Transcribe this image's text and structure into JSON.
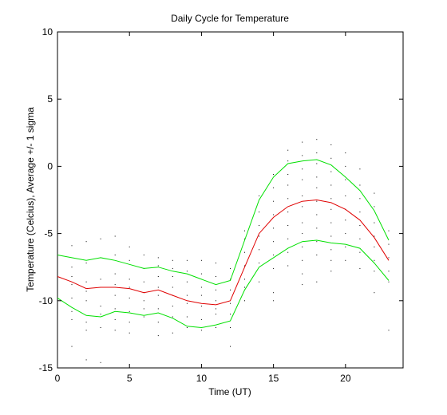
{
  "chart_data": {
    "type": "line",
    "title": "Daily Cycle for Temperature",
    "xlabel": "Time (UT)",
    "ylabel": "Temperature (Celcius), Average +/- 1 sigma",
    "xlim": [
      0,
      24
    ],
    "ylim": [
      -15,
      10
    ],
    "xticks": [
      0,
      5,
      10,
      15,
      20
    ],
    "yticks": [
      -15,
      -10,
      -5,
      0,
      5,
      10
    ],
    "grid": false,
    "x": [
      0,
      1,
      2,
      3,
      4,
      5,
      6,
      7,
      8,
      9,
      10,
      11,
      12,
      13,
      14,
      15,
      16,
      17,
      18,
      19,
      20,
      21,
      22,
      23
    ],
    "series": [
      {
        "color": "#00e000",
        "values": [
          -6.6,
          -6.8,
          -7.0,
          -6.8,
          -7.0,
          -7.3,
          -7.6,
          -7.5,
          -7.8,
          -8.0,
          -8.4,
          -8.8,
          -8.5,
          -5.5,
          -2.5,
          -0.8,
          0.2,
          0.4,
          0.5,
          0.1,
          -0.8,
          -1.8,
          -3.3,
          -5.5
        ]
      },
      {
        "color": "#e00000",
        "values": [
          -8.2,
          -8.6,
          -9.1,
          -9.0,
          -9.0,
          -9.1,
          -9.4,
          -9.2,
          -9.6,
          -10.0,
          -10.2,
          -10.3,
          -10.0,
          -7.5,
          -5.0,
          -3.8,
          -3.0,
          -2.6,
          -2.5,
          -2.7,
          -3.2,
          -4.0,
          -5.3,
          -7.0
        ]
      },
      {
        "color": "#00e000",
        "values": [
          -9.8,
          -10.5,
          -11.1,
          -11.2,
          -10.8,
          -10.9,
          -11.1,
          -10.9,
          -11.3,
          -11.9,
          -12.0,
          -11.8,
          -11.5,
          -9.2,
          -7.5,
          -6.8,
          -6.1,
          -5.6,
          -5.5,
          -5.7,
          -5.8,
          -6.1,
          -7.2,
          -8.5
        ]
      }
    ],
    "scatter": {
      "color": "#000000",
      "points": [
        [
          0,
          -6.0
        ],
        [
          0,
          -7.2
        ],
        [
          0,
          -7.8
        ],
        [
          0,
          -8.4
        ],
        [
          0,
          -9.0
        ],
        [
          0,
          -9.6
        ],
        [
          0,
          -10.6
        ],
        [
          1,
          -5.9
        ],
        [
          1,
          -7.5
        ],
        [
          1,
          -8.2
        ],
        [
          1,
          -8.8
        ],
        [
          1,
          -9.8
        ],
        [
          1,
          -10.8
        ],
        [
          1,
          -11.4
        ],
        [
          1,
          -13.4
        ],
        [
          2,
          -5.6
        ],
        [
          2,
          -7.2
        ],
        [
          2,
          -8.6
        ],
        [
          2,
          -9.3
        ],
        [
          2,
          -10.0
        ],
        [
          2,
          -11.6
        ],
        [
          2,
          -12.2
        ],
        [
          2,
          -14.4
        ],
        [
          3,
          -5.4
        ],
        [
          3,
          -6.8
        ],
        [
          3,
          -8.4
        ],
        [
          3,
          -9.0
        ],
        [
          3,
          -10.4
        ],
        [
          3,
          -11.0
        ],
        [
          3,
          -12.0
        ],
        [
          3,
          -14.6
        ],
        [
          4,
          -5.2
        ],
        [
          4,
          -6.6
        ],
        [
          4,
          -8.0
        ],
        [
          4,
          -8.8
        ],
        [
          4,
          -9.6
        ],
        [
          4,
          -10.6
        ],
        [
          4,
          -11.4
        ],
        [
          4,
          -12.2
        ],
        [
          5,
          -6.0
        ],
        [
          5,
          -7.0
        ],
        [
          5,
          -8.4
        ],
        [
          5,
          -9.0
        ],
        [
          5,
          -9.8
        ],
        [
          5,
          -10.8
        ],
        [
          5,
          -11.6
        ],
        [
          5,
          -12.4
        ],
        [
          6,
          -6.6
        ],
        [
          6,
          -7.6
        ],
        [
          6,
          -8.6
        ],
        [
          6,
          -9.4
        ],
        [
          6,
          -10.0
        ],
        [
          6,
          -10.6
        ],
        [
          6,
          -11.2
        ],
        [
          7,
          -6.8
        ],
        [
          7,
          -7.4
        ],
        [
          7,
          -8.2
        ],
        [
          7,
          -9.0
        ],
        [
          7,
          -9.6
        ],
        [
          7,
          -10.6
        ],
        [
          7,
          -11.6
        ],
        [
          7,
          -12.6
        ],
        [
          8,
          -7.0
        ],
        [
          8,
          -7.6
        ],
        [
          8,
          -8.2
        ],
        [
          8,
          -9.0
        ],
        [
          8,
          -9.6
        ],
        [
          8,
          -10.4
        ],
        [
          8,
          -11.2
        ],
        [
          8,
          -12.4
        ],
        [
          9,
          -7.0
        ],
        [
          9,
          -7.8
        ],
        [
          9,
          -8.6
        ],
        [
          9,
          -9.6
        ],
        [
          9,
          -10.2
        ],
        [
          9,
          -11.2
        ],
        [
          9,
          -12.0
        ],
        [
          10,
          -7.0
        ],
        [
          10,
          -8.0
        ],
        [
          10,
          -9.0
        ],
        [
          10,
          -9.6
        ],
        [
          10,
          -10.4
        ],
        [
          10,
          -11.4
        ],
        [
          10,
          -12.2
        ],
        [
          11,
          -7.2
        ],
        [
          11,
          -8.2
        ],
        [
          11,
          -9.2
        ],
        [
          11,
          -10.0
        ],
        [
          11,
          -10.6
        ],
        [
          11,
          -11.0
        ],
        [
          11,
          -12.0
        ],
        [
          12,
          -7.6
        ],
        [
          12,
          -8.4
        ],
        [
          12,
          -9.2
        ],
        [
          12,
          -10.2
        ],
        [
          12,
          -11.0
        ],
        [
          12,
          -12.0
        ],
        [
          12,
          -13.4
        ],
        [
          13,
          -4.8
        ],
        [
          13,
          -5.4
        ],
        [
          13,
          -6.4
        ],
        [
          13,
          -7.4
        ],
        [
          13,
          -8.4
        ],
        [
          13,
          -9.0
        ],
        [
          13,
          -10.0
        ],
        [
          14,
          -2.2
        ],
        [
          14,
          -3.4
        ],
        [
          14,
          -4.4
        ],
        [
          14,
          -5.2
        ],
        [
          14,
          -6.2
        ],
        [
          14,
          -7.2
        ],
        [
          14,
          -8.6
        ],
        [
          15,
          -0.6
        ],
        [
          15,
          -1.6
        ],
        [
          15,
          -2.6
        ],
        [
          15,
          -3.6
        ],
        [
          15,
          -4.6
        ],
        [
          15,
          -5.6
        ],
        [
          15,
          -6.6
        ],
        [
          15,
          -7.6
        ],
        [
          15,
          -9.4
        ],
        [
          15,
          -10.0
        ],
        [
          16,
          1.2
        ],
        [
          16,
          0.4
        ],
        [
          16,
          -0.6
        ],
        [
          16,
          -1.4
        ],
        [
          16,
          -2.4
        ],
        [
          16,
          -3.4
        ],
        [
          16,
          -4.4
        ],
        [
          16,
          -5.4
        ],
        [
          16,
          -6.4
        ],
        [
          16,
          -7.4
        ],
        [
          17,
          1.8
        ],
        [
          17,
          0.8
        ],
        [
          17,
          -0.2
        ],
        [
          17,
          -1.0
        ],
        [
          17,
          -2.2
        ],
        [
          17,
          -3.0
        ],
        [
          17,
          -4.2
        ],
        [
          17,
          -5.0
        ],
        [
          17,
          -6.0
        ],
        [
          17,
          -7.0
        ],
        [
          17,
          -8.0
        ],
        [
          17,
          -8.8
        ],
        [
          18,
          2.0
        ],
        [
          18,
          1.0
        ],
        [
          18,
          0.2
        ],
        [
          18,
          -0.8
        ],
        [
          18,
          -1.6
        ],
        [
          18,
          -2.6
        ],
        [
          18,
          -3.6
        ],
        [
          18,
          -4.6
        ],
        [
          18,
          -5.6
        ],
        [
          18,
          -6.6
        ],
        [
          18,
          -8.6
        ],
        [
          19,
          1.6
        ],
        [
          19,
          0.6
        ],
        [
          19,
          -0.4
        ],
        [
          19,
          -1.4
        ],
        [
          19,
          -2.4
        ],
        [
          19,
          -3.2
        ],
        [
          19,
          -4.2
        ],
        [
          19,
          -5.2
        ],
        [
          19,
          -6.2
        ],
        [
          19,
          -7.0
        ],
        [
          19,
          -7.8
        ],
        [
          20,
          1.0
        ],
        [
          20,
          0.0
        ],
        [
          20,
          -1.0
        ],
        [
          20,
          -2.2
        ],
        [
          20,
          -3.2
        ],
        [
          20,
          -4.0
        ],
        [
          20,
          -5.0
        ],
        [
          20,
          -6.0
        ],
        [
          20,
          -7.0
        ],
        [
          21,
          -0.2
        ],
        [
          21,
          -1.4
        ],
        [
          21,
          -2.4
        ],
        [
          21,
          -3.4
        ],
        [
          21,
          -4.4
        ],
        [
          21,
          -5.4
        ],
        [
          21,
          -6.4
        ],
        [
          21,
          -7.6
        ],
        [
          22,
          -2.0
        ],
        [
          22,
          -3.0
        ],
        [
          22,
          -4.2
        ],
        [
          22,
          -5.2
        ],
        [
          22,
          -6.0
        ],
        [
          22,
          -7.0
        ],
        [
          22,
          -7.8
        ],
        [
          22,
          -9.4
        ],
        [
          23,
          -4.8
        ],
        [
          23,
          -5.8
        ],
        [
          23,
          -6.8
        ],
        [
          23,
          -7.8
        ],
        [
          23,
          -8.6
        ],
        [
          23,
          -12.2
        ]
      ]
    }
  }
}
